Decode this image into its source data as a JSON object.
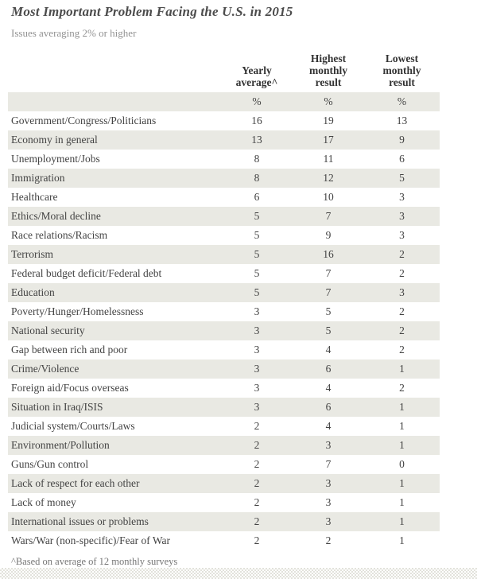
{
  "title": "Most Important Problem Facing the U.S. in 2015",
  "subtitle": "Issues averaging 2% or higher",
  "footnote": "^Based on average of 12 monthly surveys",
  "colors": {
    "row_stripe": "#e9e9e3",
    "title_text": "#4c4c4c",
    "subtitle_text": "#929292",
    "body_text": "#434343",
    "header_text": "#333333",
    "footnote_text": "#757575"
  },
  "chart_data": {
    "type": "table",
    "title": "Most Important Problem Facing the U.S. in 2015",
    "subtitle": "Issues averaging 2% or higher",
    "unit": "%",
    "columns": [
      {
        "label": "Yearly average^",
        "lines": [
          "Yearly",
          "average^"
        ]
      },
      {
        "label": "Highest monthly result",
        "lines": [
          "Highest",
          "monthly",
          "result"
        ]
      },
      {
        "label": "Lowest monthly result",
        "lines": [
          "Lowest",
          "monthly",
          "result"
        ]
      }
    ],
    "unit_row": [
      "%",
      "%",
      "%"
    ],
    "rows": [
      {
        "label": "Government/Congress/Politicians",
        "values": [
          16,
          19,
          13
        ]
      },
      {
        "label": "Economy in general",
        "values": [
          13,
          17,
          9
        ]
      },
      {
        "label": "Unemployment/Jobs",
        "values": [
          8,
          11,
          6
        ]
      },
      {
        "label": "Immigration",
        "values": [
          8,
          12,
          5
        ]
      },
      {
        "label": "Healthcare",
        "values": [
          6,
          10,
          3
        ]
      },
      {
        "label": "Ethics/Moral decline",
        "values": [
          5,
          7,
          3
        ]
      },
      {
        "label": "Race relations/Racism",
        "values": [
          5,
          9,
          3
        ]
      },
      {
        "label": "Terrorism",
        "values": [
          5,
          16,
          2
        ]
      },
      {
        "label": "Federal budget deficit/Federal debt",
        "values": [
          5,
          7,
          2
        ]
      },
      {
        "label": "Education",
        "values": [
          5,
          7,
          3
        ]
      },
      {
        "label": "Poverty/Hunger/Homelessness",
        "values": [
          3,
          5,
          2
        ]
      },
      {
        "label": "National security",
        "values": [
          3,
          5,
          2
        ]
      },
      {
        "label": "Gap between rich and poor",
        "values": [
          3,
          4,
          2
        ]
      },
      {
        "label": "Crime/Violence",
        "values": [
          3,
          6,
          1
        ]
      },
      {
        "label": "Foreign aid/Focus overseas",
        "values": [
          3,
          4,
          2
        ]
      },
      {
        "label": "Situation in Iraq/ISIS",
        "values": [
          3,
          6,
          1
        ]
      },
      {
        "label": "Judicial system/Courts/Laws",
        "values": [
          2,
          4,
          1
        ]
      },
      {
        "label": "Environment/Pollution",
        "values": [
          2,
          3,
          1
        ]
      },
      {
        "label": "Guns/Gun control",
        "values": [
          2,
          7,
          0
        ]
      },
      {
        "label": "Lack of respect for each other",
        "values": [
          2,
          3,
          1
        ]
      },
      {
        "label": "Lack of money",
        "values": [
          2,
          3,
          1
        ]
      },
      {
        "label": "International issues or problems",
        "values": [
          2,
          3,
          1
        ]
      },
      {
        "label": "Wars/War (non-specific)/Fear of War",
        "values": [
          2,
          2,
          1
        ]
      }
    ],
    "footnote": "^Based on average of 12 monthly surveys",
    "layout": {
      "stripe": "alternating",
      "grid": "off",
      "legend": "none"
    }
  }
}
